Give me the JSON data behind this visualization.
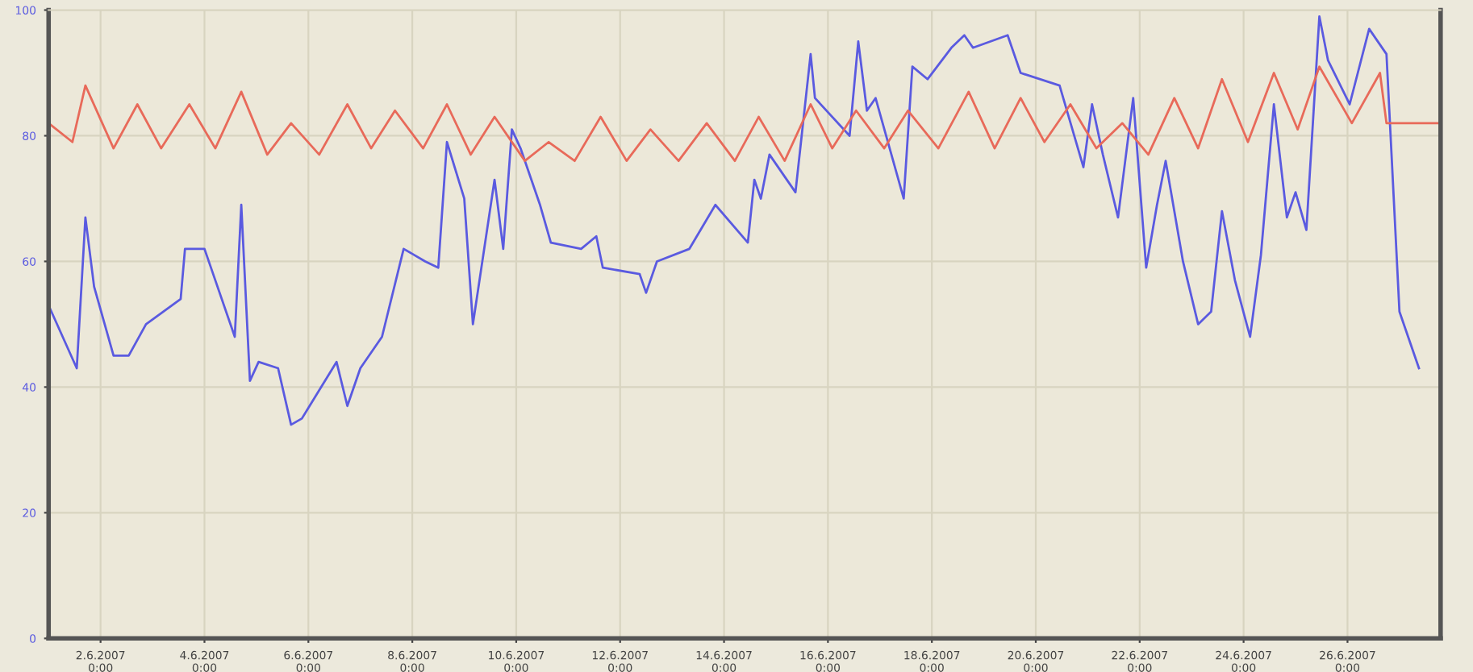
{
  "chart_data": {
    "type": "line",
    "xlim": [
      "2007-06-01T00:00",
      "2007-06-27T19:00"
    ],
    "xticks": [
      {
        "value": "2007-06-02T00:00",
        "label": "2.6.2007\n0:00"
      },
      {
        "value": "2007-06-04T00:00",
        "label": "4.6.2007\n0:00"
      },
      {
        "value": "2007-06-06T00:00",
        "label": "6.6.2007\n0:00"
      },
      {
        "value": "2007-06-08T00:00",
        "label": "8.6.2007\n0:00"
      },
      {
        "value": "2007-06-10T00:00",
        "label": "10.6.2007\n0:00"
      },
      {
        "value": "2007-06-12T00:00",
        "label": "12.6.2007\n0:00"
      },
      {
        "value": "2007-06-14T00:00",
        "label": "14.6.2007\n0:00"
      },
      {
        "value": "2007-06-16T00:00",
        "label": "16.6.2007\n0:00"
      },
      {
        "value": "2007-06-18T00:00",
        "label": "18.6.2007\n0:00"
      },
      {
        "value": "2007-06-20T00:00",
        "label": "20.6.2007\n0:00"
      },
      {
        "value": "2007-06-22T00:00",
        "label": "22.6.2007\n0:00"
      },
      {
        "value": "2007-06-24T00:00",
        "label": "24.6.2007\n0:00"
      },
      {
        "value": "2007-06-26T00:00",
        "label": "26.6.2007\n0:00"
      }
    ],
    "ylim": [
      0,
      100
    ],
    "yticks": [
      0,
      20,
      40,
      60,
      80,
      100
    ],
    "grid": true,
    "marker": "none",
    "line_style": "solid",
    "series": [
      {
        "color": "#5a5ae0",
        "x": [
          "2007-06-01T00:00",
          "2007-06-01T13:00",
          "2007-06-01T17:00",
          "2007-06-01T21:00",
          "2007-06-02T06:00",
          "2007-06-02T13:00",
          "2007-06-02T21:00",
          "2007-06-03T13:00",
          "2007-06-03T15:00",
          "2007-06-04T00:00",
          "2007-06-04T14:00",
          "2007-06-04T17:00",
          "2007-06-04T21:00",
          "2007-06-05T01:00",
          "2007-06-05T10:00",
          "2007-06-05T16:00",
          "2007-06-05T21:00",
          "2007-06-06T13:00",
          "2007-06-06T18:00",
          "2007-06-07T00:00",
          "2007-06-07T10:00",
          "2007-06-07T20:00",
          "2007-06-08T06:00",
          "2007-06-08T12:00",
          "2007-06-08T16:00",
          "2007-06-09T00:00",
          "2007-06-09T04:00",
          "2007-06-09T14:00",
          "2007-06-09T18:00",
          "2007-06-09T22:00",
          "2007-06-10T02:00",
          "2007-06-10T11:00",
          "2007-06-10T16:00",
          "2007-06-11T06:00",
          "2007-06-11T13:00",
          "2007-06-11T16:00",
          "2007-06-12T09:00",
          "2007-06-12T12:00",
          "2007-06-12T17:00",
          "2007-06-13T08:00",
          "2007-06-13T20:00",
          "2007-06-14T11:00",
          "2007-06-14T14:00",
          "2007-06-14T17:00",
          "2007-06-14T21:00",
          "2007-06-15T09:00",
          "2007-06-15T16:00",
          "2007-06-15T18:00",
          "2007-06-16T10:00",
          "2007-06-16T14:00",
          "2007-06-16T18:00",
          "2007-06-16T22:00",
          "2007-06-17T11:00",
          "2007-06-17T15:00",
          "2007-06-17T22:00",
          "2007-06-18T09:00",
          "2007-06-18T15:00",
          "2007-06-18T19:00",
          "2007-06-19T11:00",
          "2007-06-19T17:00",
          "2007-06-20T11:00",
          "2007-06-20T22:00",
          "2007-06-21T02:00",
          "2007-06-21T07:00",
          "2007-06-21T14:00",
          "2007-06-21T21:00",
          "2007-06-22T03:00",
          "2007-06-22T08:00",
          "2007-06-22T12:00",
          "2007-06-22T20:00",
          "2007-06-23T03:00",
          "2007-06-23T09:00",
          "2007-06-23T14:00",
          "2007-06-23T20:00",
          "2007-06-24T03:00",
          "2007-06-24T08:00",
          "2007-06-24T14:00",
          "2007-06-24T20:00",
          "2007-06-25T00:00",
          "2007-06-25T05:00",
          "2007-06-25T11:00",
          "2007-06-25T15:00",
          "2007-06-26T01:00",
          "2007-06-26T10:00",
          "2007-06-26T18:00",
          "2007-06-27T00:00",
          "2007-06-27T09:00"
        ],
        "values": [
          53,
          43,
          67,
          56,
          45,
          45,
          50,
          54,
          62,
          62,
          48,
          69,
          41,
          44,
          43,
          34,
          35,
          44,
          37,
          43,
          48,
          62,
          60,
          59,
          79,
          70,
          50,
          73,
          62,
          81,
          78,
          69,
          63,
          62,
          64,
          59,
          58,
          55,
          60,
          62,
          69,
          63,
          73,
          70,
          77,
          71,
          93,
          86,
          80,
          95,
          84,
          86,
          70,
          91,
          89,
          94,
          96,
          94,
          96,
          90,
          88,
          75,
          85,
          77,
          67,
          86,
          59,
          69,
          76,
          60,
          50,
          52,
          68,
          57,
          48,
          61,
          85,
          67,
          71,
          65,
          99,
          92,
          85,
          97,
          93,
          52,
          43
        ]
      },
      {
        "color": "#e86a5a",
        "x": [
          "2007-06-01T00:00",
          "2007-06-01T11:00",
          "2007-06-01T17:00",
          "2007-06-02T06:00",
          "2007-06-02T17:00",
          "2007-06-03T04:00",
          "2007-06-03T17:00",
          "2007-06-04T05:00",
          "2007-06-04T17:00",
          "2007-06-05T05:00",
          "2007-06-05T16:00",
          "2007-06-06T05:00",
          "2007-06-06T18:00",
          "2007-06-07T05:00",
          "2007-06-07T16:00",
          "2007-06-08T05:00",
          "2007-06-08T16:00",
          "2007-06-09T03:00",
          "2007-06-09T14:00",
          "2007-06-10T04:00",
          "2007-06-10T15:00",
          "2007-06-11T03:00",
          "2007-06-11T15:00",
          "2007-06-12T03:00",
          "2007-06-12T14:00",
          "2007-06-13T03:00",
          "2007-06-13T16:00",
          "2007-06-14T05:00",
          "2007-06-14T16:00",
          "2007-06-15T04:00",
          "2007-06-15T16:00",
          "2007-06-16T02:00",
          "2007-06-16T13:00",
          "2007-06-17T02:00",
          "2007-06-17T13:00",
          "2007-06-18T03:00",
          "2007-06-18T17:00",
          "2007-06-19T05:00",
          "2007-06-19T17:00",
          "2007-06-20T04:00",
          "2007-06-20T16:00",
          "2007-06-21T04:00",
          "2007-06-21T16:00",
          "2007-06-22T04:00",
          "2007-06-22T16:00",
          "2007-06-23T03:00",
          "2007-06-23T14:00",
          "2007-06-24T02:00",
          "2007-06-24T14:00",
          "2007-06-25T01:00",
          "2007-06-25T11:00",
          "2007-06-26T02:00",
          "2007-06-26T15:00",
          "2007-06-26T18:00",
          "2007-06-27T19:00"
        ],
        "values": [
          82,
          79,
          88,
          78,
          85,
          78,
          85,
          78,
          87,
          77,
          82,
          77,
          85,
          78,
          84,
          78,
          85,
          77,
          83,
          76,
          79,
          76,
          83,
          76,
          81,
          76,
          82,
          76,
          83,
          76,
          85,
          78,
          84,
          78,
          84,
          78,
          87,
          78,
          86,
          79,
          85,
          78,
          82,
          77,
          86,
          78,
          89,
          79,
          90,
          81,
          91,
          82,
          90,
          82,
          82
        ]
      }
    ]
  }
}
